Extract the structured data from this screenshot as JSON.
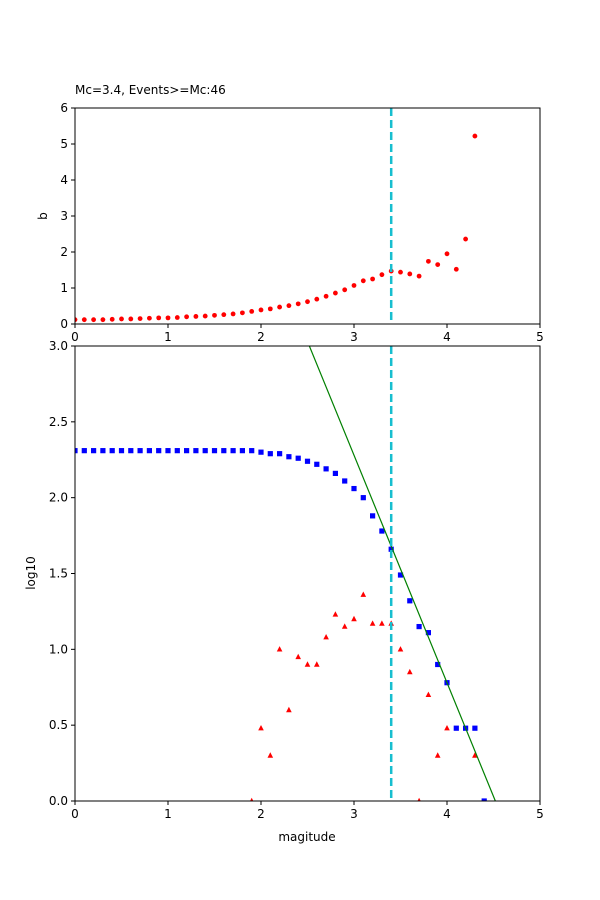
{
  "chart_data": [
    {
      "type": "scatter",
      "title": "Mc=3.4, Events>=Mc:46",
      "xlabel": "",
      "ylabel": "b",
      "xlim": [
        0,
        5
      ],
      "ylim": [
        0,
        6
      ],
      "xticks": [
        "0",
        "1",
        "2",
        "3",
        "4",
        "5"
      ],
      "yticks": [
        "0",
        "1",
        "2",
        "3",
        "4",
        "5",
        "6"
      ],
      "mc": 3.4,
      "series": [
        {
          "marker": "circle",
          "color": "#ff0000",
          "x": [
            0.0,
            0.1,
            0.2,
            0.3,
            0.4,
            0.5,
            0.6,
            0.7,
            0.8,
            0.9,
            1.0,
            1.1,
            1.2,
            1.3,
            1.4,
            1.5,
            1.6,
            1.7,
            1.8,
            1.9,
            2.0,
            2.1,
            2.2,
            2.3,
            2.4,
            2.5,
            2.6,
            2.7,
            2.8,
            2.9,
            3.0,
            3.1,
            3.2,
            3.3,
            3.4,
            3.5,
            3.6,
            3.7,
            3.8,
            3.9,
            4.0,
            4.1,
            4.2,
            4.3
          ],
          "y": [
            0.12,
            0.12,
            0.12,
            0.12,
            0.13,
            0.14,
            0.14,
            0.15,
            0.16,
            0.17,
            0.17,
            0.18,
            0.2,
            0.21,
            0.22,
            0.24,
            0.26,
            0.28,
            0.31,
            0.35,
            0.39,
            0.42,
            0.47,
            0.51,
            0.56,
            0.62,
            0.69,
            0.77,
            0.86,
            0.95,
            1.07,
            1.2,
            1.25,
            1.37,
            1.47,
            1.44,
            1.39,
            1.33,
            1.74,
            1.65,
            1.95,
            1.52,
            2.36,
            5.22
          ]
        }
      ]
    },
    {
      "type": "scatter",
      "title": "",
      "xlabel": "magitude",
      "ylabel": "log10",
      "xlim": [
        0,
        5
      ],
      "ylim": [
        0,
        3
      ],
      "xticks": [
        "0",
        "1",
        "2",
        "3",
        "4",
        "5"
      ],
      "yticks": [
        "0.0",
        "0.5",
        "1.0",
        "1.5",
        "2.0",
        "2.5",
        "3.0"
      ],
      "mc": 3.4,
      "series": [
        {
          "marker": "square",
          "color": "#0000ff",
          "x": [
            0.0,
            0.1,
            0.2,
            0.3,
            0.4,
            0.5,
            0.6,
            0.7,
            0.8,
            0.9,
            1.0,
            1.1,
            1.2,
            1.3,
            1.4,
            1.5,
            1.6,
            1.7,
            1.8,
            1.9,
            2.0,
            2.1,
            2.2,
            2.3,
            2.4,
            2.5,
            2.6,
            2.7,
            2.8,
            2.9,
            3.0,
            3.1,
            3.2,
            3.3,
            3.4,
            3.5,
            3.6,
            3.7,
            3.8,
            3.9,
            4.0,
            4.1,
            4.2,
            4.3,
            4.4
          ],
          "y": [
            2.31,
            2.31,
            2.31,
            2.31,
            2.31,
            2.31,
            2.31,
            2.31,
            2.31,
            2.31,
            2.31,
            2.31,
            2.31,
            2.31,
            2.31,
            2.31,
            2.31,
            2.31,
            2.31,
            2.31,
            2.3,
            2.29,
            2.29,
            2.27,
            2.26,
            2.24,
            2.22,
            2.19,
            2.16,
            2.11,
            2.06,
            2.0,
            1.88,
            1.78,
            1.66,
            1.49,
            1.32,
            1.15,
            1.11,
            0.9,
            0.78,
            0.48,
            0.48,
            0.48,
            0.0
          ]
        },
        {
          "marker": "triangle",
          "color": "#ff0000",
          "x": [
            1.9,
            2.0,
            2.1,
            2.2,
            2.3,
            2.4,
            2.5,
            2.6,
            2.7,
            2.8,
            2.9,
            3.0,
            3.1,
            3.2,
            3.3,
            3.4,
            3.5,
            3.6,
            3.7,
            3.8,
            3.9,
            4.0,
            4.3
          ],
          "y": [
            0.0,
            0.48,
            0.3,
            1.0,
            0.6,
            0.95,
            0.9,
            0.9,
            1.08,
            1.23,
            1.15,
            1.2,
            1.36,
            1.17,
            1.17,
            1.17,
            1.0,
            0.85,
            0.0,
            0.7,
            0.3,
            0.48,
            0.3
          ]
        },
        {
          "marker": "line",
          "color": "#008000",
          "x": [
            2.52,
            4.52
          ],
          "y": [
            3.0,
            0.0
          ]
        }
      ]
    }
  ],
  "colors": {
    "mc_line": "#17becf",
    "axes": "#000000"
  }
}
